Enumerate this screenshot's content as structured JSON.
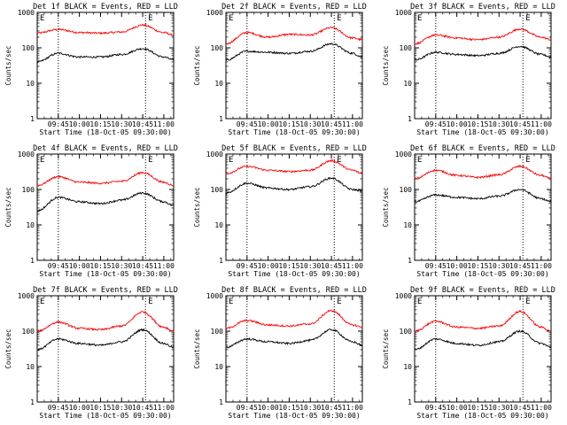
{
  "chart_data": [
    {
      "type": "line",
      "title": "Det 1f BLACK = Events, RED = LLD",
      "xlabel": "Start Time (18-Oct-05 09:30:00)",
      "ylabel": "Counts/sec",
      "ylim": [
        1,
        1000
      ],
      "y_scale": "log",
      "x_ticks": [
        "09:45",
        "10:00",
        "10:15",
        "10:30",
        "10:45",
        "11:00"
      ],
      "y_ticks": [
        "1",
        "10",
        "100",
        "1000"
      ],
      "markers": [
        "E",
        "E"
      ],
      "vlines": [
        "09:45",
        "10:47"
      ],
      "x": [
        "09:30",
        "09:45",
        "10:00",
        "10:15",
        "10:30",
        "10:45",
        "11:00",
        "11:07"
      ],
      "series": [
        {
          "name": "LLD",
          "color": "#ff0000",
          "values": [
            260,
            330,
            270,
            260,
            280,
            440,
            270,
            230
          ]
        },
        {
          "name": "Events",
          "color": "#000000",
          "values": [
            40,
            70,
            55,
            55,
            65,
            95,
            55,
            45
          ]
        }
      ]
    },
    {
      "type": "line",
      "title": "Det 2f BLACK = Events, RED = LLD",
      "xlabel": "Start Time (18-Oct-05 09:30:00)",
      "ylabel": "Counts/sec",
      "ylim": [
        1,
        1000
      ],
      "y_scale": "log",
      "x_ticks": [
        "09:45",
        "10:00",
        "10:15",
        "10:30",
        "10:45",
        "11:00"
      ],
      "y_ticks": [
        "1",
        "10",
        "100",
        "1000"
      ],
      "markers": [
        "E",
        "E"
      ],
      "vlines": [
        "09:45",
        "10:47"
      ],
      "x": [
        "09:30",
        "09:45",
        "10:00",
        "10:15",
        "10:30",
        "10:45",
        "11:00",
        "11:07"
      ],
      "series": [
        {
          "name": "LLD",
          "color": "#ff0000",
          "values": [
            130,
            270,
            200,
            240,
            230,
            370,
            190,
            170
          ]
        },
        {
          "name": "Events",
          "color": "#000000",
          "values": [
            45,
            80,
            75,
            70,
            80,
            130,
            70,
            55
          ]
        }
      ]
    },
    {
      "type": "line",
      "title": "Det 3f BLACK = Events, RED = LLD",
      "xlabel": "Start Time (18-Oct-05 09:30:00)",
      "ylabel": "Counts/sec",
      "ylim": [
        1,
        1000
      ],
      "y_scale": "log",
      "x_ticks": [
        "09:45",
        "10:00",
        "10:15",
        "10:30",
        "10:45",
        "11:00"
      ],
      "y_ticks": [
        "1",
        "10",
        "100",
        "1000"
      ],
      "markers": [
        "E",
        "E"
      ],
      "vlines": [
        "09:45",
        "10:47"
      ],
      "x": [
        "09:30",
        "09:45",
        "10:00",
        "10:15",
        "10:30",
        "10:45",
        "11:00",
        "11:07"
      ],
      "series": [
        {
          "name": "LLD",
          "color": "#ff0000",
          "values": [
            130,
            230,
            190,
            170,
            200,
            340,
            200,
            170
          ]
        },
        {
          "name": "Events",
          "color": "#000000",
          "values": [
            45,
            75,
            65,
            60,
            70,
            110,
            65,
            55
          ]
        }
      ]
    },
    {
      "type": "line",
      "title": "Det 4f BLACK = Events, RED = LLD",
      "xlabel": "Start Time (18-Oct-05 09:30:00)",
      "ylabel": "Counts/sec",
      "ylim": [
        1,
        1000
      ],
      "y_scale": "log",
      "x_ticks": [
        "09:45",
        "10:00",
        "10:15",
        "10:30",
        "10:45",
        "11:00"
      ],
      "y_ticks": [
        "1",
        "10",
        "100",
        "1000"
      ],
      "markers": [
        "E",
        "E"
      ],
      "vlines": [
        "09:45",
        "10:47"
      ],
      "x": [
        "09:30",
        "09:45",
        "10:00",
        "10:15",
        "10:30",
        "10:45",
        "11:00",
        "11:07"
      ],
      "series": [
        {
          "name": "LLD",
          "color": "#ff0000",
          "values": [
            130,
            230,
            160,
            150,
            170,
            300,
            160,
            130
          ]
        },
        {
          "name": "Events",
          "color": "#000000",
          "values": [
            25,
            60,
            45,
            40,
            50,
            80,
            45,
            35
          ]
        }
      ]
    },
    {
      "type": "line",
      "title": "Det 5f BLACK = Events, RED = LLD",
      "xlabel": "Start Time (18-Oct-05 09:30:00)",
      "ylabel": "Counts/sec",
      "ylim": [
        1,
        1000
      ],
      "y_scale": "log",
      "x_ticks": [
        "09:45",
        "10:00",
        "10:15",
        "10:30",
        "10:45",
        "11:00"
      ],
      "y_ticks": [
        "1",
        "10",
        "100",
        "1000"
      ],
      "markers": [
        "E",
        "E"
      ],
      "vlines": [
        "09:45",
        "10:47"
      ],
      "x": [
        "09:30",
        "09:45",
        "10:00",
        "10:15",
        "10:30",
        "10:45",
        "11:00",
        "11:07"
      ],
      "series": [
        {
          "name": "LLD",
          "color": "#ff0000",
          "values": [
            280,
            450,
            350,
            320,
            350,
            650,
            350,
            280
          ]
        },
        {
          "name": "Events",
          "color": "#000000",
          "values": [
            80,
            150,
            110,
            100,
            120,
            210,
            100,
            90
          ]
        }
      ]
    },
    {
      "type": "line",
      "title": "Det 6f BLACK = Events, RED = LLD",
      "xlabel": "Start Time (18-Oct-05 09:30:00)",
      "ylabel": "Counts/sec",
      "ylim": [
        1,
        1000
      ],
      "y_scale": "log",
      "x_ticks": [
        "09:45",
        "10:00",
        "10:15",
        "10:30",
        "10:45",
        "11:00"
      ],
      "y_ticks": [
        "1",
        "10",
        "100",
        "1000"
      ],
      "markers": [
        "E",
        "E"
      ],
      "vlines": [
        "09:45",
        "10:47"
      ],
      "x": [
        "09:30",
        "09:45",
        "10:00",
        "10:15",
        "10:30",
        "10:45",
        "11:00",
        "11:07"
      ],
      "series": [
        {
          "name": "LLD",
          "color": "#ff0000",
          "values": [
            200,
            350,
            250,
            220,
            260,
            450,
            250,
            200
          ]
        },
        {
          "name": "Events",
          "color": "#000000",
          "values": [
            45,
            70,
            60,
            55,
            65,
            100,
            55,
            45
          ]
        }
      ]
    },
    {
      "type": "line",
      "title": "Det 7f BLACK = Events, RED = LLD",
      "xlabel": "Start Time (18-Oct-05 09:30:00)",
      "ylabel": "Counts/sec",
      "ylim": [
        1,
        1000
      ],
      "y_scale": "log",
      "x_ticks": [
        "09:45",
        "10:00",
        "10:15",
        "10:30",
        "10:45",
        "11:00"
      ],
      "y_ticks": [
        "1",
        "10",
        "100",
        "1000"
      ],
      "markers": [
        "E",
        "E"
      ],
      "vlines": [
        "09:45",
        "10:47"
      ],
      "x": [
        "09:30",
        "09:45",
        "10:00",
        "10:15",
        "10:30",
        "10:45",
        "11:00",
        "11:07"
      ],
      "series": [
        {
          "name": "LLD",
          "color": "#ff0000",
          "values": [
            100,
            180,
            120,
            110,
            140,
            350,
            130,
            100
          ]
        },
        {
          "name": "Events",
          "color": "#000000",
          "values": [
            30,
            60,
            45,
            40,
            50,
            110,
            45,
            35
          ]
        }
      ]
    },
    {
      "type": "line",
      "title": "Det 8f BLACK = Events, RED = LLD",
      "xlabel": "Start Time (18-Oct-05 09:30:00)",
      "ylabel": "Counts/sec",
      "ylim": [
        1,
        1000
      ],
      "y_scale": "log",
      "x_ticks": [
        "09:45",
        "10:00",
        "10:15",
        "10:30",
        "10:45",
        "11:00"
      ],
      "y_ticks": [
        "1",
        "10",
        "100",
        "1000"
      ],
      "markers": [
        "E",
        "E"
      ],
      "vlines": [
        "09:45",
        "10:47"
      ],
      "x": [
        "09:30",
        "09:45",
        "10:00",
        "10:15",
        "10:30",
        "10:45",
        "11:00",
        "11:07"
      ],
      "series": [
        {
          "name": "LLD",
          "color": "#ff0000",
          "values": [
            120,
            200,
            150,
            140,
            160,
            380,
            150,
            130
          ]
        },
        {
          "name": "Events",
          "color": "#000000",
          "values": [
            35,
            60,
            50,
            45,
            55,
            110,
            50,
            40
          ]
        }
      ]
    },
    {
      "type": "line",
      "title": "Det 9f BLACK = Events, RED = LLD",
      "xlabel": "Start Time (18-Oct-05 09:30:00)",
      "ylabel": "Counts/sec",
      "ylim": [
        1,
        1000
      ],
      "y_scale": "log",
      "x_ticks": [
        "09:45",
        "10:00",
        "10:15",
        "10:30",
        "10:45",
        "11:00"
      ],
      "y_ticks": [
        "1",
        "10",
        "100",
        "1000"
      ],
      "markers": [
        "E",
        "E"
      ],
      "vlines": [
        "09:45",
        "10:47"
      ],
      "x": [
        "09:30",
        "09:45",
        "10:00",
        "10:15",
        "10:30",
        "10:45",
        "11:00",
        "11:07"
      ],
      "series": [
        {
          "name": "LLD",
          "color": "#ff0000",
          "values": [
            100,
            190,
            130,
            120,
            140,
            360,
            130,
            100
          ]
        },
        {
          "name": "Events",
          "color": "#000000",
          "values": [
            30,
            60,
            45,
            40,
            50,
            100,
            45,
            35
          ]
        }
      ]
    }
  ]
}
